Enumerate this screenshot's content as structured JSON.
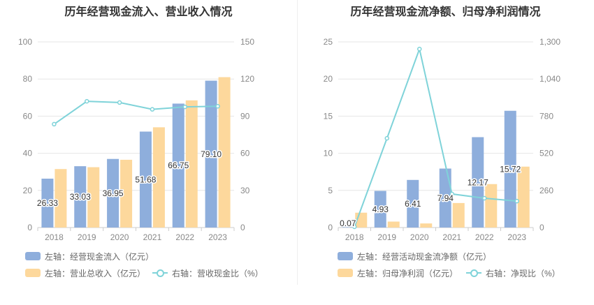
{
  "colors": {
    "bar_primary": "#8eaedc",
    "bar_secondary": "#fdd89c",
    "line": "#7fd3d9"
  },
  "chart_data": [
    {
      "type": "bar",
      "title": "历年经营现金流入、营业收入情况",
      "categories": [
        "2018",
        "2019",
        "2020",
        "2021",
        "2022",
        "2023"
      ],
      "y_left_ticks": [
        "0",
        "20",
        "40",
        "60",
        "80",
        "100"
      ],
      "y_right_ticks": [
        "0",
        "30",
        "60",
        "90",
        "120",
        "150"
      ],
      "ylim_left": [
        0,
        100
      ],
      "ylim_right": [
        0,
        150
      ],
      "series": [
        {
          "name": "左轴：经营现金流入（亿元）",
          "axis": "left",
          "kind": "bar",
          "values": [
            26.33,
            33.03,
            36.95,
            51.68,
            66.75,
            79.1
          ],
          "labels": [
            "26.33",
            "33.03",
            "36.95",
            "51.68",
            "66.75",
            "79.10"
          ]
        },
        {
          "name": "左轴：营业总收入（亿元）",
          "axis": "left",
          "kind": "bar",
          "values": [
            31.5,
            32.5,
            36.5,
            54.0,
            68.5,
            81.0
          ]
        },
        {
          "name": "右轴：营收现金比（%）",
          "axis": "right",
          "kind": "line",
          "values": [
            83.5,
            102.0,
            101.0,
            95.5,
            97.5,
            98.0
          ]
        }
      ]
    },
    {
      "type": "bar",
      "title": "历年经营现金流净额、归母净利润情况",
      "categories": [
        "2018",
        "2019",
        "2020",
        "2021",
        "2022",
        "2023"
      ],
      "y_left_ticks": [
        "0",
        "5",
        "10",
        "15",
        "20",
        "25"
      ],
      "y_right_ticks": [
        "0",
        "260",
        "520",
        "780",
        "1,040",
        "1,300"
      ],
      "ylim_left": [
        0,
        25
      ],
      "ylim_right": [
        0,
        1300
      ],
      "series": [
        {
          "name": "左轴：经营活动现金流净额（亿元）",
          "axis": "left",
          "kind": "bar",
          "values": [
            0.07,
            4.93,
            6.41,
            7.94,
            12.17,
            15.72
          ],
          "labels": [
            "0.07",
            "4.93",
            "6.41",
            "7.94",
            "12.17",
            "15.72"
          ]
        },
        {
          "name": "左轴：归母净利润（亿元）",
          "axis": "left",
          "kind": "bar",
          "values": [
            2.0,
            0.8,
            0.55,
            3.3,
            5.85,
            8.2
          ]
        },
        {
          "name": "右轴：净现比（%）",
          "axis": "right",
          "kind": "line",
          "values": [
            5,
            625,
            1250,
            235,
            205,
            185
          ]
        }
      ]
    }
  ]
}
